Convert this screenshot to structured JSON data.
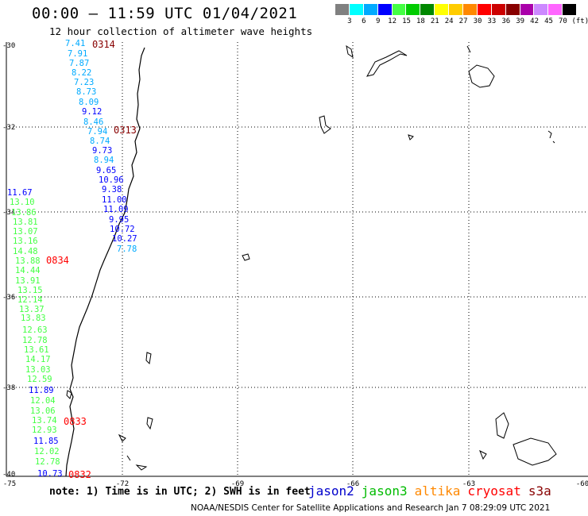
{
  "title": "00:00 – 11:59 UTC 01/04/2021",
  "subtitle": "12 hour collection of altimeter wave heights",
  "legend": {
    "unit_label": "(ft)",
    "labels": [
      "3",
      "6",
      "9",
      "12",
      "15",
      "18",
      "21",
      "24",
      "27",
      "30",
      "33",
      "36",
      "39",
      "42",
      "45",
      "70"
    ],
    "colors": [
      "#808080",
      "#00ffff",
      "#00aaff",
      "#0000ff",
      "#44ff44",
      "#00cc00",
      "#008800",
      "#ffff00",
      "#ffcc00",
      "#ff8800",
      "#ff0000",
      "#cc0000",
      "#880000",
      "#aa00aa",
      "#cc88ff",
      "#ff66ff",
      "#000000"
    ]
  },
  "axes": {
    "lat_labels": [
      "-30",
      "-32",
      "-34",
      "-36",
      "-38",
      "-40"
    ],
    "lon_labels": [
      "-75",
      "-72",
      "-69",
      "-66",
      "-63",
      "-60"
    ]
  },
  "note": "note: 1) Time is in UTC; 2) SWH is in feet",
  "satellites": [
    {
      "name": "jason2",
      "color": "#0000cc"
    },
    {
      "name": "jason3",
      "color": "#00bb00"
    },
    {
      "name": "altika",
      "color": "#ff8800"
    },
    {
      "name": "cryosat",
      "color": "#ff0000"
    },
    {
      "name": "s3a",
      "color": "#880000"
    }
  ],
  "credit": "NOAA/NESDIS Center for Satellite Applications and Research   Jan  7 08:29:09 UTC 2021",
  "passes": [
    {
      "time": "0314",
      "color": "#880000"
    },
    {
      "time": "0313",
      "color": "#880000"
    },
    {
      "time": "0834",
      "color": "#ff0000"
    },
    {
      "time": "0833",
      "color": "#ff0000"
    },
    {
      "time": "0832",
      "color": "#ff0000"
    }
  ],
  "track1": {
    "values": [
      "7.41",
      "7.91",
      "7.87",
      "8.22",
      "7.23",
      "8.73",
      "8.09",
      "9.12",
      "8.46",
      "7.94",
      "8.74",
      "9.73",
      "8.94",
      "9.65",
      "10.96",
      "9.38",
      "11.00",
      "11.09",
      "9.95",
      "10.72",
      "10.27",
      "7.78"
    ],
    "colors": [
      "#00aaff",
      "#00aaff",
      "#00aaff",
      "#00aaff",
      "#00aaff",
      "#00aaff",
      "#00aaff",
      "#0000ff",
      "#00aaff",
      "#00aaff",
      "#00aaff",
      "#0000ff",
      "#00aaff",
      "#0000ff",
      "#0000ff",
      "#0000ff",
      "#0000ff",
      "#0000ff",
      "#0000ff",
      "#0000ff",
      "#0000ff",
      "#00aaff"
    ]
  },
  "track2": {
    "values": [
      "11.67",
      "13.10",
      "13.86",
      "13.81",
      "13.07",
      "13.16",
      "14.48",
      "13.88",
      "14.44",
      "13.91",
      "13.15",
      "12.14",
      "13.37",
      "13.83",
      "12.63",
      "12.78",
      "13.61",
      "14.17",
      "13.03",
      "12.59",
      "11.89",
      "12.04",
      "13.06",
      "13.74",
      "12.93",
      "11.85",
      "12.02",
      "12.78",
      "10.73"
    ],
    "colors": [
      "#0000ff",
      "#44ff44",
      "#44ff44",
      "#44ff44",
      "#44ff44",
      "#44ff44",
      "#44ff44",
      "#44ff44",
      "#44ff44",
      "#44ff44",
      "#44ff44",
      "#44ff44",
      "#44ff44",
      "#44ff44",
      "#44ff44",
      "#44ff44",
      "#44ff44",
      "#44ff44",
      "#44ff44",
      "#44ff44",
      "#0000ff",
      "#44ff44",
      "#44ff44",
      "#44ff44",
      "#44ff44",
      "#0000ff",
      "#44ff44",
      "#44ff44",
      "#0000ff"
    ]
  }
}
